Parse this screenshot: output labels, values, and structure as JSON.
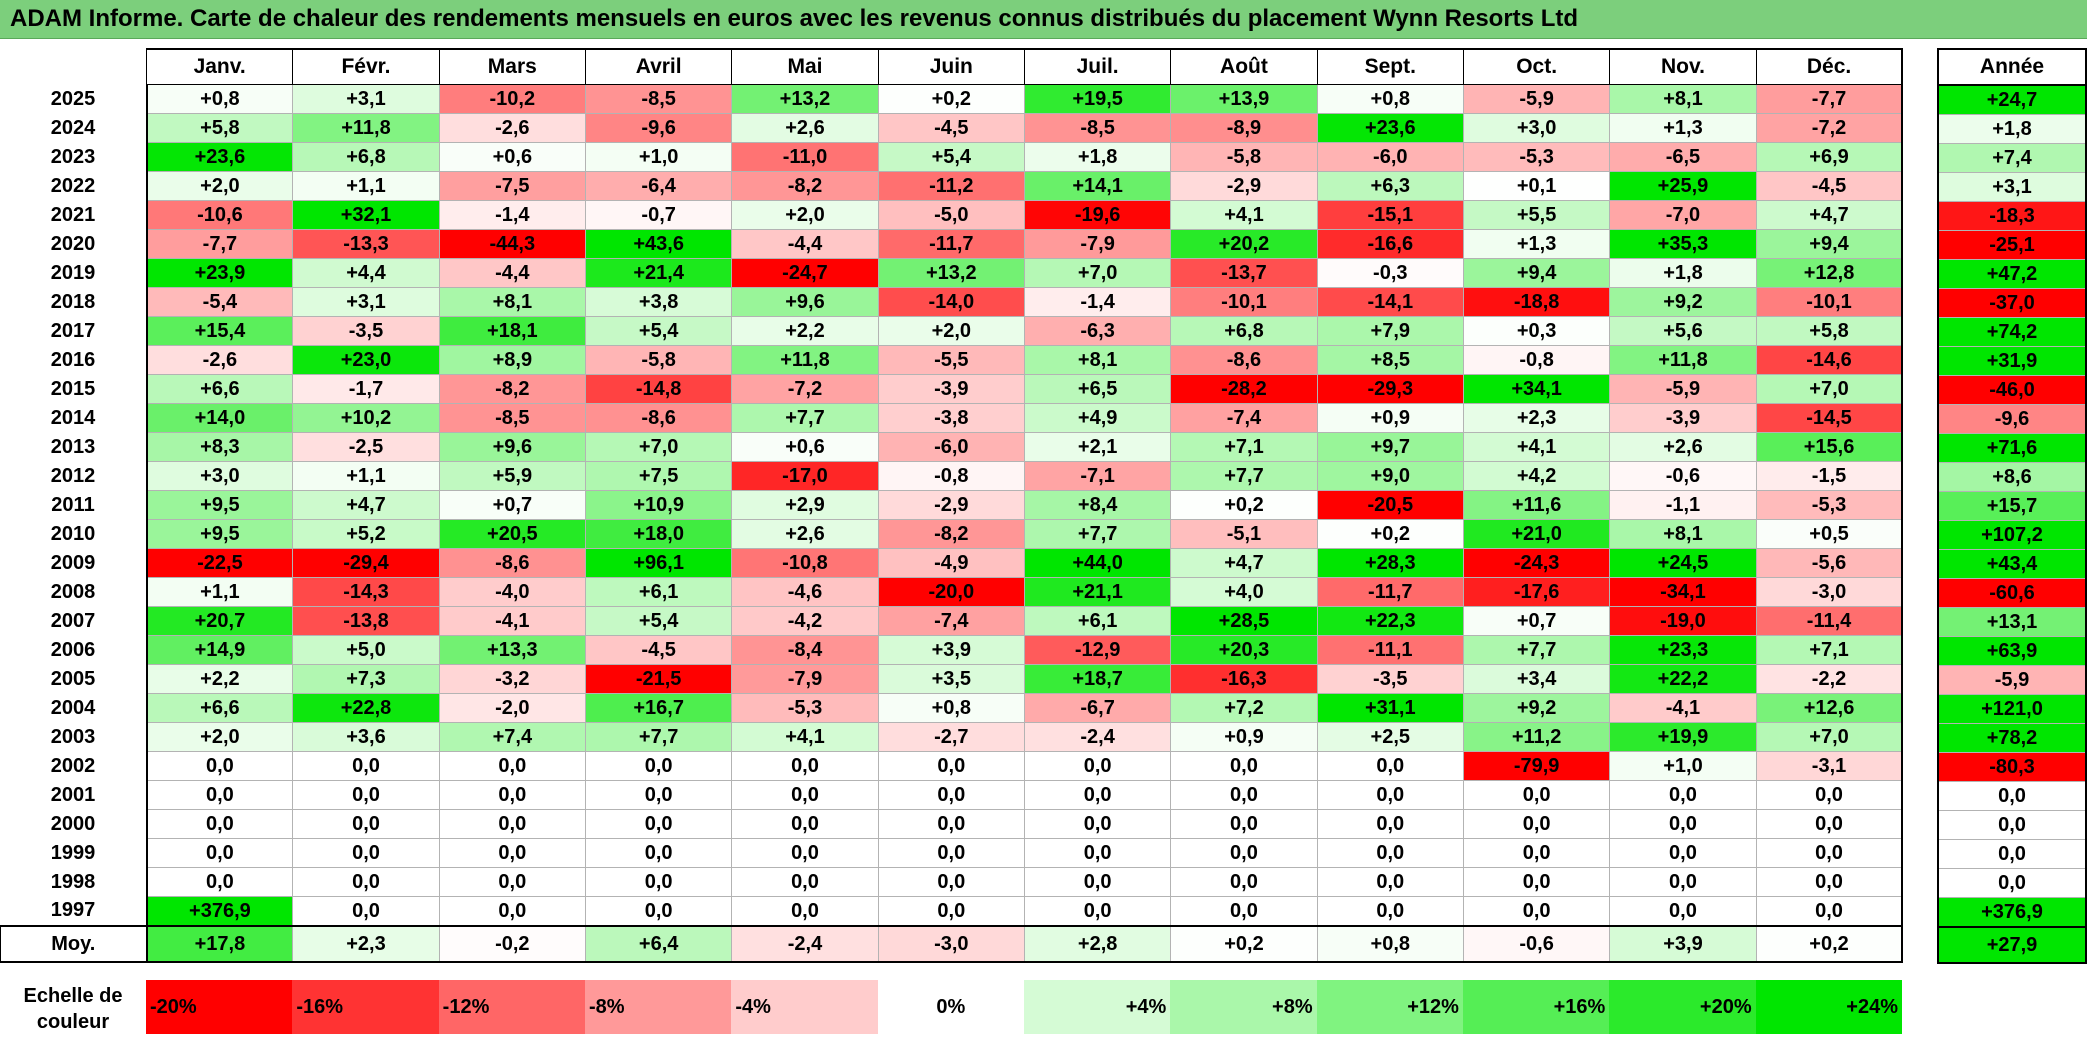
{
  "title": "ADAM Informe. Carte de chaleur des rendements mensuels en euros avec les revenus connus distribués du placement Wynn Resorts Ltd",
  "months": [
    "Janv.",
    "Févr.",
    "Mars",
    "Avril",
    "Mai",
    "Juin",
    "Juil.",
    "Août",
    "Sept.",
    "Oct.",
    "Nov.",
    "Déc."
  ],
  "year_header": "Année",
  "rows": [
    {
      "year": "2025",
      "values": [
        0.8,
        3.1,
        -10.2,
        -8.5,
        13.2,
        0.2,
        19.5,
        13.9,
        0.8,
        -5.9,
        8.1,
        -7.7
      ],
      "annual": 24.7
    },
    {
      "year": "2024",
      "values": [
        5.8,
        11.8,
        -2.6,
        -9.6,
        2.6,
        -4.5,
        -8.5,
        -8.9,
        23.6,
        3.0,
        1.3,
        -7.2
      ],
      "annual": 1.8
    },
    {
      "year": "2023",
      "values": [
        23.6,
        6.8,
        0.6,
        1.0,
        -11.0,
        5.4,
        1.8,
        -5.8,
        -6.0,
        -5.3,
        -6.5,
        6.9
      ],
      "annual": 7.4
    },
    {
      "year": "2022",
      "values": [
        2.0,
        1.1,
        -7.5,
        -6.4,
        -8.2,
        -11.2,
        14.1,
        -2.9,
        6.3,
        0.1,
        25.9,
        -4.5
      ],
      "annual": 3.1
    },
    {
      "year": "2021",
      "values": [
        -10.6,
        32.1,
        -1.4,
        -0.7,
        2.0,
        -5.0,
        -19.6,
        4.1,
        -15.1,
        5.5,
        -7.0,
        4.7
      ],
      "annual": -18.3
    },
    {
      "year": "2020",
      "values": [
        -7.7,
        -13.3,
        -44.3,
        43.6,
        -4.4,
        -11.7,
        -7.9,
        20.2,
        -16.6,
        1.3,
        35.3,
        9.4
      ],
      "annual": -25.1
    },
    {
      "year": "2019",
      "values": [
        23.9,
        4.4,
        -4.4,
        21.4,
        -24.7,
        13.2,
        7.0,
        -13.7,
        -0.3,
        9.4,
        1.8,
        12.8
      ],
      "annual": 47.2
    },
    {
      "year": "2018",
      "values": [
        -5.4,
        3.1,
        8.1,
        3.8,
        9.6,
        -14.0,
        -1.4,
        -10.1,
        -14.1,
        -18.8,
        9.2,
        -10.1
      ],
      "annual": -37.0
    },
    {
      "year": "2017",
      "values": [
        15.4,
        -3.5,
        18.1,
        5.4,
        2.2,
        2.0,
        -6.3,
        6.8,
        7.9,
        0.3,
        5.6,
        5.8
      ],
      "annual": 74.2
    },
    {
      "year": "2016",
      "values": [
        -2.6,
        23.0,
        8.9,
        -5.8,
        11.8,
        -5.5,
        8.1,
        -8.6,
        8.5,
        -0.8,
        11.8,
        -14.6
      ],
      "annual": 31.9
    },
    {
      "year": "2015",
      "values": [
        6.6,
        -1.7,
        -8.2,
        -14.8,
        -7.2,
        -3.9,
        6.5,
        -28.2,
        -29.3,
        34.1,
        -5.9,
        7.0
      ],
      "annual": -46.0
    },
    {
      "year": "2014",
      "values": [
        14.0,
        10.2,
        -8.5,
        -8.6,
        7.7,
        -3.8,
        4.9,
        -7.4,
        0.9,
        2.3,
        -3.9,
        -14.5
      ],
      "annual": -9.6
    },
    {
      "year": "2013",
      "values": [
        8.3,
        -2.5,
        9.6,
        7.0,
        0.6,
        -6.0,
        2.1,
        7.1,
        9.7,
        4.1,
        2.6,
        15.6
      ],
      "annual": 71.6
    },
    {
      "year": "2012",
      "values": [
        3.0,
        1.1,
        5.9,
        7.5,
        -17.0,
        -0.8,
        -7.1,
        7.7,
        9.0,
        4.2,
        -0.6,
        -1.5
      ],
      "annual": 8.6
    },
    {
      "year": "2011",
      "values": [
        9.5,
        4.7,
        0.7,
        10.9,
        2.9,
        -2.9,
        8.4,
        0.2,
        -20.5,
        11.6,
        -1.1,
        -5.3
      ],
      "annual": 15.7
    },
    {
      "year": "2010",
      "values": [
        9.5,
        5.2,
        20.5,
        18.0,
        2.6,
        -8.2,
        7.7,
        -5.1,
        0.2,
        21.0,
        8.1,
        0.5
      ],
      "annual": 107.2
    },
    {
      "year": "2009",
      "values": [
        -22.5,
        -29.4,
        -8.6,
        96.1,
        -10.8,
        -4.9,
        44.0,
        4.7,
        28.3,
        -24.3,
        24.5,
        -5.6
      ],
      "annual": 43.4
    },
    {
      "year": "2008",
      "values": [
        1.1,
        -14.3,
        -4.0,
        6.1,
        -4.6,
        -20.0,
        21.1,
        4.0,
        -11.7,
        -17.6,
        -34.1,
        -3.0
      ],
      "annual": -60.6
    },
    {
      "year": "2007",
      "values": [
        20.7,
        -13.8,
        -4.1,
        5.4,
        -4.2,
        -7.4,
        6.1,
        28.5,
        22.3,
        0.7,
        -19.0,
        -11.4
      ],
      "annual": 13.1
    },
    {
      "year": "2006",
      "values": [
        14.9,
        5.0,
        13.3,
        -4.5,
        -8.4,
        3.9,
        -12.9,
        20.3,
        -11.1,
        7.7,
        23.3,
        7.1
      ],
      "annual": 63.9
    },
    {
      "year": "2005",
      "values": [
        2.2,
        7.3,
        -3.2,
        -21.5,
        -7.9,
        3.5,
        18.7,
        -16.3,
        -3.5,
        3.4,
        22.2,
        -2.2
      ],
      "annual": -5.9
    },
    {
      "year": "2004",
      "values": [
        6.6,
        22.8,
        -2.0,
        16.7,
        -5.3,
        0.8,
        -6.7,
        7.2,
        31.1,
        9.2,
        -4.1,
        12.6
      ],
      "annual": 121.0
    },
    {
      "year": "2003",
      "values": [
        2.0,
        3.6,
        7.4,
        7.7,
        4.1,
        -2.7,
        -2.4,
        0.9,
        2.5,
        11.2,
        19.9,
        7.0
      ],
      "annual": 78.2
    },
    {
      "year": "2002",
      "values": [
        0,
        0,
        0,
        0,
        0,
        0,
        0,
        0,
        0,
        -79.9,
        1.0,
        -3.1
      ],
      "annual": -80.3
    },
    {
      "year": "2001",
      "values": [
        0,
        0,
        0,
        0,
        0,
        0,
        0,
        0,
        0,
        0,
        0,
        0
      ],
      "annual": 0
    },
    {
      "year": "2000",
      "values": [
        0,
        0,
        0,
        0,
        0,
        0,
        0,
        0,
        0,
        0,
        0,
        0
      ],
      "annual": 0
    },
    {
      "year": "1999",
      "values": [
        0,
        0,
        0,
        0,
        0,
        0,
        0,
        0,
        0,
        0,
        0,
        0
      ],
      "annual": 0
    },
    {
      "year": "1998",
      "values": [
        0,
        0,
        0,
        0,
        0,
        0,
        0,
        0,
        0,
        0,
        0,
        0
      ],
      "annual": 0
    },
    {
      "year": "1997",
      "values": [
        376.9,
        0,
        0,
        0,
        0,
        0,
        0,
        0,
        0,
        0,
        0,
        0
      ],
      "annual": 376.9
    }
  ],
  "average": {
    "label": "Moy.",
    "values": [
      17.8,
      2.3,
      -0.2,
      6.4,
      -2.4,
      -3.0,
      2.8,
      0.2,
      0.8,
      -0.6,
      3.9,
      0.2
    ],
    "annual": 27.9
  },
  "scale": {
    "label": "Echelle de couleur",
    "steps": [
      {
        "text": "-20%",
        "value": -20
      },
      {
        "text": "-16%",
        "value": -16
      },
      {
        "text": "-12%",
        "value": -12
      },
      {
        "text": "-8%",
        "value": -8
      },
      {
        "text": "-4%",
        "value": -4
      },
      {
        "text": "0%",
        "value": 0
      },
      {
        "text": "+4%",
        "value": 4
      },
      {
        "text": "+8%",
        "value": 8
      },
      {
        "text": "+12%",
        "value": 12
      },
      {
        "text": "+16%",
        "value": 16
      },
      {
        "text": "+20%",
        "value": 20
      },
      {
        "text": "+24%",
        "value": 24
      }
    ]
  },
  "colors": {
    "title_bg": "#7ccf7c",
    "negative_max": "#ff0000",
    "neutral": "#ffffff",
    "positive_max": "#00e600"
  }
}
